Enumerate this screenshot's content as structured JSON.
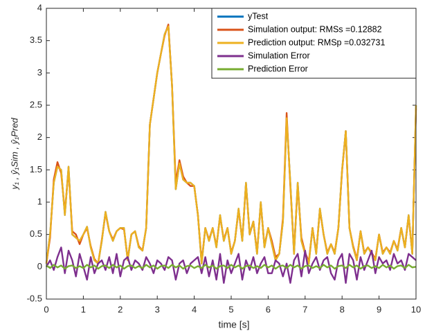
{
  "chart_data": {
    "type": "line",
    "x": [
      0,
      0.1,
      0.2,
      0.3,
      0.4,
      0.5,
      0.6,
      0.7,
      0.8,
      0.9,
      1,
      1.1,
      1.2,
      1.3,
      1.4,
      1.5,
      1.6,
      1.7,
      1.8,
      1.9,
      2,
      2.1,
      2.2,
      2.3,
      2.4,
      2.5,
      2.6,
      2.7,
      2.8,
      2.9,
      3,
      3.1,
      3.2,
      3.3,
      3.4,
      3.5,
      3.6,
      3.7,
      3.8,
      3.9,
      4,
      4.1,
      4.2,
      4.3,
      4.4,
      4.5,
      4.6,
      4.7,
      4.8,
      4.9,
      5,
      5.1,
      5.2,
      5.3,
      5.4,
      5.5,
      5.6,
      5.7,
      5.8,
      5.9,
      6,
      6.1,
      6.2,
      6.3,
      6.4,
      6.5,
      6.6,
      6.7,
      6.8,
      6.9,
      7,
      7.1,
      7.2,
      7.3,
      7.4,
      7.5,
      7.6,
      7.7,
      7.8,
      7.9,
      8,
      8.1,
      8.2,
      8.3,
      8.4,
      8.5,
      8.6,
      8.7,
      8.8,
      8.9,
      9,
      9.1,
      9.2,
      9.3,
      9.4,
      9.5,
      9.6,
      9.7,
      9.8,
      9.9,
      10
    ],
    "series": [
      {
        "name": "yTest",
        "color": "#0072bd",
        "values": [
          0.05,
          0.5,
          1.3,
          1.55,
          1.5,
          0.8,
          1.55,
          0.5,
          0.45,
          0.4,
          0.5,
          0.62,
          0.3,
          0.1,
          0.05,
          0.4,
          0.85,
          0.55,
          0.4,
          0.55,
          0.6,
          0.6,
          0.1,
          0.5,
          0.55,
          0.3,
          0.25,
          0.6,
          2.2,
          2.6,
          3.0,
          3.3,
          3.6,
          3.73,
          2.8,
          1.2,
          1.6,
          1.35,
          1.3,
          1.3,
          1.25,
          0.8,
          0.05,
          0.6,
          0.4,
          0.6,
          0.3,
          0.8,
          0.4,
          0.6,
          0.2,
          0.4,
          0.9,
          0.4,
          1.3,
          0.5,
          0.7,
          0.2,
          1.0,
          0.3,
          0.6,
          0.35,
          0.1,
          0.2,
          0.7,
          2.3,
          1.3,
          0.2,
          1.3,
          0.4,
          0.2,
          0.05,
          0.6,
          0.2,
          0.9,
          0.5,
          0.2,
          0.35,
          0.2,
          0.6,
          1.5,
          2.1,
          0.6,
          0.3,
          0.1,
          0.55,
          0.2,
          0.3,
          0.2,
          0.1,
          0.5,
          0.2,
          0.3,
          0.2,
          0.4,
          0.25,
          0.6,
          0.3,
          0.8,
          0.2,
          2.5
        ]
      },
      {
        "name": "Simulation output: RMSs =0.12882",
        "color": "#d95319",
        "values": [
          0.05,
          0.45,
          1.35,
          1.62,
          1.45,
          0.85,
          1.5,
          0.55,
          0.5,
          0.35,
          0.5,
          0.6,
          0.32,
          0.12,
          0.05,
          0.42,
          0.83,
          0.55,
          0.42,
          0.55,
          0.6,
          0.58,
          0.12,
          0.5,
          0.55,
          0.32,
          0.25,
          0.6,
          2.2,
          2.6,
          3.0,
          3.3,
          3.58,
          3.75,
          2.8,
          1.3,
          1.65,
          1.4,
          1.3,
          1.25,
          1.25,
          0.8,
          0.08,
          0.6,
          0.42,
          0.6,
          0.32,
          0.78,
          0.42,
          0.6,
          0.22,
          0.4,
          0.88,
          0.42,
          1.28,
          0.5,
          0.7,
          0.22,
          0.98,
          0.32,
          0.6,
          0.4,
          0.15,
          0.2,
          0.75,
          2.38,
          1.25,
          0.25,
          1.25,
          0.45,
          0.22,
          0.08,
          0.6,
          0.22,
          0.88,
          0.5,
          0.22,
          0.35,
          0.22,
          0.6,
          1.48,
          2.1,
          0.6,
          0.32,
          0.12,
          0.55,
          0.22,
          0.3,
          0.22,
          0.12,
          0.5,
          0.22,
          0.3,
          0.22,
          0.4,
          0.27,
          0.6,
          0.3,
          0.78,
          0.22,
          2.45
        ]
      },
      {
        "name": "Prediction output: RMSp =0.032731",
        "color": "#edb120",
        "values": [
          0.05,
          0.5,
          1.3,
          1.55,
          1.5,
          0.8,
          1.55,
          0.5,
          0.45,
          0.4,
          0.5,
          0.62,
          0.3,
          0.1,
          0.05,
          0.4,
          0.85,
          0.55,
          0.4,
          0.55,
          0.6,
          0.6,
          0.1,
          0.5,
          0.55,
          0.3,
          0.25,
          0.6,
          2.2,
          2.6,
          3.0,
          3.3,
          3.6,
          3.72,
          2.8,
          1.2,
          1.6,
          1.35,
          1.3,
          1.3,
          1.25,
          0.8,
          0.05,
          0.6,
          0.4,
          0.6,
          0.3,
          0.8,
          0.4,
          0.6,
          0.2,
          0.4,
          0.9,
          0.4,
          1.3,
          0.5,
          0.7,
          0.2,
          1.0,
          0.3,
          0.6,
          0.35,
          0.1,
          0.2,
          0.7,
          2.3,
          1.3,
          0.2,
          1.3,
          0.4,
          0.2,
          0.05,
          0.6,
          0.2,
          0.9,
          0.5,
          0.2,
          0.35,
          0.2,
          0.6,
          1.5,
          2.1,
          0.6,
          0.3,
          0.1,
          0.55,
          0.2,
          0.3,
          0.2,
          0.1,
          0.5,
          0.2,
          0.3,
          0.2,
          0.4,
          0.25,
          0.6,
          0.3,
          0.8,
          0.2,
          2.5
        ]
      },
      {
        "name": "Simulation Error",
        "color": "#7e2f8e",
        "values": [
          0,
          0.1,
          -0.05,
          0.15,
          0.3,
          -0.1,
          0.25,
          0.1,
          -0.15,
          0.2,
          0,
          -0.2,
          0.15,
          -0.1,
          0.05,
          0.1,
          -0.05,
          0.15,
          -0.1,
          0.2,
          -0.15,
          0.1,
          0.15,
          -0.05,
          0.1,
          0.05,
          -0.05,
          0.15,
          0.05,
          -0.1,
          0.1,
          0.05,
          -0.05,
          0.15,
          0.1,
          -0.2,
          0.05,
          0.1,
          -0.1,
          0.05,
          0.1,
          0.15,
          -0.1,
          0.15,
          -0.15,
          0.1,
          -0.2,
          0.2,
          -0.25,
          0.1,
          -0.1,
          0.05,
          0.2,
          -0.2,
          0.1,
          -0.05,
          0.15,
          -0.1,
          0.05,
          0.15,
          -0.1,
          -0.1,
          0.1,
          0.05,
          -0.15,
          0.05,
          -0.25,
          0.1,
          0.2,
          -0.15,
          0.25,
          -0.1,
          0.05,
          0.15,
          -0.05,
          0.1,
          0.15,
          -0.1,
          -0.2,
          0.1,
          0.2,
          -0.25,
          0.2,
          0.1,
          -0.2,
          0.15,
          -0.05,
          0.1,
          0.25,
          -0.1,
          0.15,
          0.05,
          0.1,
          -0.05,
          0.2,
          0.05,
          0.1,
          -0.05,
          0.2,
          0.15,
          0.1
        ]
      },
      {
        "name": "Prediction Error",
        "color": "#77ac30",
        "values": [
          0.02,
          -0.02,
          0.03,
          -0.01,
          0.02,
          -0.03,
          0.01,
          0.02,
          -0.02,
          0.01,
          -0.02,
          0.03,
          -0.01,
          0.02,
          -0.03,
          0.01,
          0.02,
          -0.02,
          0.03,
          -0.01,
          0.02,
          -0.03,
          0.01,
          0.02,
          -0.02,
          0.01,
          -0.02,
          0.03,
          -0.01,
          0.02,
          -0.03,
          0.01,
          0.02,
          -0.02,
          0.03,
          -0.01,
          0.02,
          -0.03,
          0.01,
          0.02,
          -0.02,
          0.01,
          -0.02,
          0.03,
          -0.01,
          0.02,
          -0.03,
          0.01,
          0.02,
          -0.02,
          0.03,
          -0.01,
          0.02,
          -0.03,
          0.01,
          0.02,
          -0.02,
          0.01,
          -0.02,
          0.03,
          -0.01,
          0.02,
          -0.03,
          0.01,
          0.02,
          -0.02,
          0.03,
          -0.01,
          0.02,
          -0.03,
          0.01,
          0.02,
          -0.02,
          0.01,
          -0.02,
          0.03,
          -0.01,
          0.02,
          -0.03,
          0.01,
          0.02,
          -0.02,
          0.03,
          -0.01,
          0.02,
          -0.03,
          0.01,
          0.02,
          -0.02,
          0.01,
          -0.02,
          0.03,
          -0.01,
          0.02,
          -0.03,
          0.01,
          0.02,
          -0.02,
          0.03,
          -0.01,
          0
        ]
      }
    ],
    "xlabel": "time [s]",
    "ylabel": "y₁ , ŷ₁Sim , ŷ₁Pred",
    "xlim": [
      0,
      10
    ],
    "xticks": [
      0,
      1,
      2,
      3,
      4,
      5,
      6,
      7,
      8,
      9,
      10
    ],
    "ylim": [
      -0.5,
      4
    ],
    "yticks": [
      -0.5,
      0,
      0.5,
      1,
      1.5,
      2,
      2.5,
      3,
      3.5,
      4
    ],
    "grid": false,
    "legend": "upper right"
  }
}
